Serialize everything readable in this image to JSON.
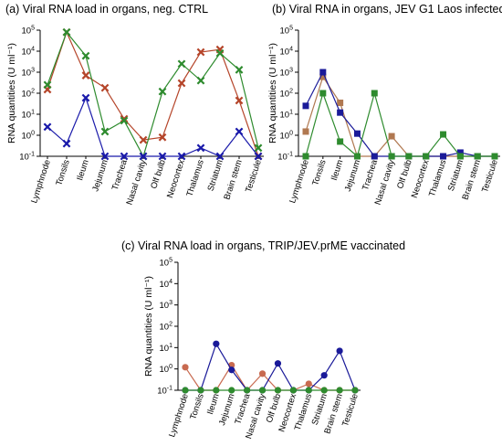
{
  "chart_data": [
    {
      "type": "line",
      "title": "(a) Viral RNA load in organs, neg. CTRL",
      "ylabel": "RNA quantities (U ml⁻¹)",
      "yscale": "log",
      "ylim": [
        0.1,
        100000
      ],
      "yticks": [
        {
          "value": 0.1,
          "base": "10",
          "exp": "-1"
        },
        {
          "value": 1,
          "base": "10",
          "exp": "0"
        },
        {
          "value": 10,
          "base": "10",
          "exp": "1"
        },
        {
          "value": 100,
          "base": "10",
          "exp": "2"
        },
        {
          "value": 1000,
          "base": "10",
          "exp": "3"
        },
        {
          "value": 10000,
          "base": "10",
          "exp": "4"
        },
        {
          "value": 100000,
          "base": "10",
          "exp": "5"
        }
      ],
      "categories": [
        "Lymphnode",
        "Tonsils",
        "Ileum",
        "Jejunum",
        "Trachea",
        "Nasal cavity",
        "Olf bulb",
        "Neocortex",
        "Thalamus",
        "Striatum",
        "Brain stem",
        "Testicule"
      ],
      "marker": "x",
      "series": [
        {
          "color": "#b5452a",
          "values": [
            150,
            80000,
            700,
            180,
            6,
            0.6,
            0.8,
            300,
            9000,
            12000,
            45,
            0.1
          ]
        },
        {
          "color": "#2e8b2e",
          "values": [
            250,
            80000,
            6000,
            1.5,
            5,
            0.1,
            120,
            2500,
            400,
            8000,
            1300,
            0.25
          ]
        },
        {
          "color": "#1a1aaa",
          "values": [
            2.5,
            0.4,
            60,
            0.1,
            0.1,
            0.1,
            0.1,
            0.1,
            0.25,
            0.1,
            1.5,
            0.1
          ]
        }
      ]
    },
    {
      "type": "line",
      "title": "(b) Viral RNA in organs, JEV G1 Laos infected",
      "ylabel": "RNA quantities (U ml⁻¹)",
      "yscale": "log",
      "ylim": [
        0.1,
        100000
      ],
      "yticks": [
        {
          "value": 0.1,
          "base": "10",
          "exp": "-1"
        },
        {
          "value": 1,
          "base": "10",
          "exp": "0"
        },
        {
          "value": 10,
          "base": "10",
          "exp": "1"
        },
        {
          "value": 100,
          "base": "10",
          "exp": "2"
        },
        {
          "value": 1000,
          "base": "10",
          "exp": "3"
        },
        {
          "value": 10000,
          "base": "10",
          "exp": "4"
        },
        {
          "value": 100000,
          "base": "10",
          "exp": "5"
        }
      ],
      "categories": [
        "Lymphnode",
        "Tonsils",
        "Ileum",
        "Jejunum",
        "Trachea",
        "Nasal cavity",
        "Olf bulb",
        "Neocortex",
        "Thalamus",
        "Striatum",
        "Brain stem",
        "Testicule"
      ],
      "marker": "square",
      "series": [
        {
          "color": "#b07850",
          "values": [
            1.5,
            600,
            35,
            0.1,
            0.1,
            0.9,
            0.1,
            0.1,
            0.1,
            0.1,
            0.1,
            0.1
          ]
        },
        {
          "color": "#1a1a99",
          "values": [
            25,
            1000,
            12,
            1.2,
            0.1,
            0.1,
            0.1,
            0.1,
            0.1,
            0.15,
            0.1,
            0.1
          ]
        },
        {
          "color": "#2e8b2e",
          "values": [
            0.1,
            100,
            0.5,
            0.1,
            100,
            0.1,
            0.1,
            0.1,
            1.1,
            0.1,
            0.1,
            0.1
          ]
        }
      ]
    },
    {
      "type": "line",
      "title": "(c) Viral RNA load in organs, TRIP/JEV.prME vaccinated",
      "ylabel": "RNA quantities (U ml⁻¹)",
      "yscale": "log",
      "ylim": [
        0.1,
        100000
      ],
      "yticks": [
        {
          "value": 0.1,
          "base": "10",
          "exp": "-1"
        },
        {
          "value": 1,
          "base": "10",
          "exp": "0"
        },
        {
          "value": 10,
          "base": "10",
          "exp": "1"
        },
        {
          "value": 100,
          "base": "10",
          "exp": "2"
        },
        {
          "value": 1000,
          "base": "10",
          "exp": "3"
        },
        {
          "value": 10000,
          "base": "10",
          "exp": "4"
        },
        {
          "value": 100000,
          "base": "10",
          "exp": "5"
        }
      ],
      "categories": [
        "Lymphnode",
        "Tonsils",
        "Ileum",
        "Jejunum",
        "Trachea",
        "Nasal cavity",
        "Olf bulb",
        "Neocortex",
        "Thalamus",
        "Striatum",
        "Brain stem",
        "Testicule"
      ],
      "marker": "circle",
      "series": [
        {
          "color": "#c86a50",
          "values": [
            1.2,
            0.1,
            0.1,
            1.5,
            0.1,
            0.6,
            0.1,
            0.1,
            0.2,
            0.1,
            0.1,
            0.1
          ]
        },
        {
          "color": "#1a1a99",
          "values": [
            0.1,
            0.1,
            15,
            0.9,
            0.1,
            0.1,
            1.8,
            0.1,
            0.1,
            0.5,
            7,
            0.1
          ]
        },
        {
          "color": "#2e8b2e",
          "values": [
            0.1,
            0.1,
            0.1,
            0.1,
            0.1,
            0.1,
            0.1,
            0.1,
            0.1,
            0.1,
            0.1,
            0.1
          ]
        }
      ]
    }
  ]
}
